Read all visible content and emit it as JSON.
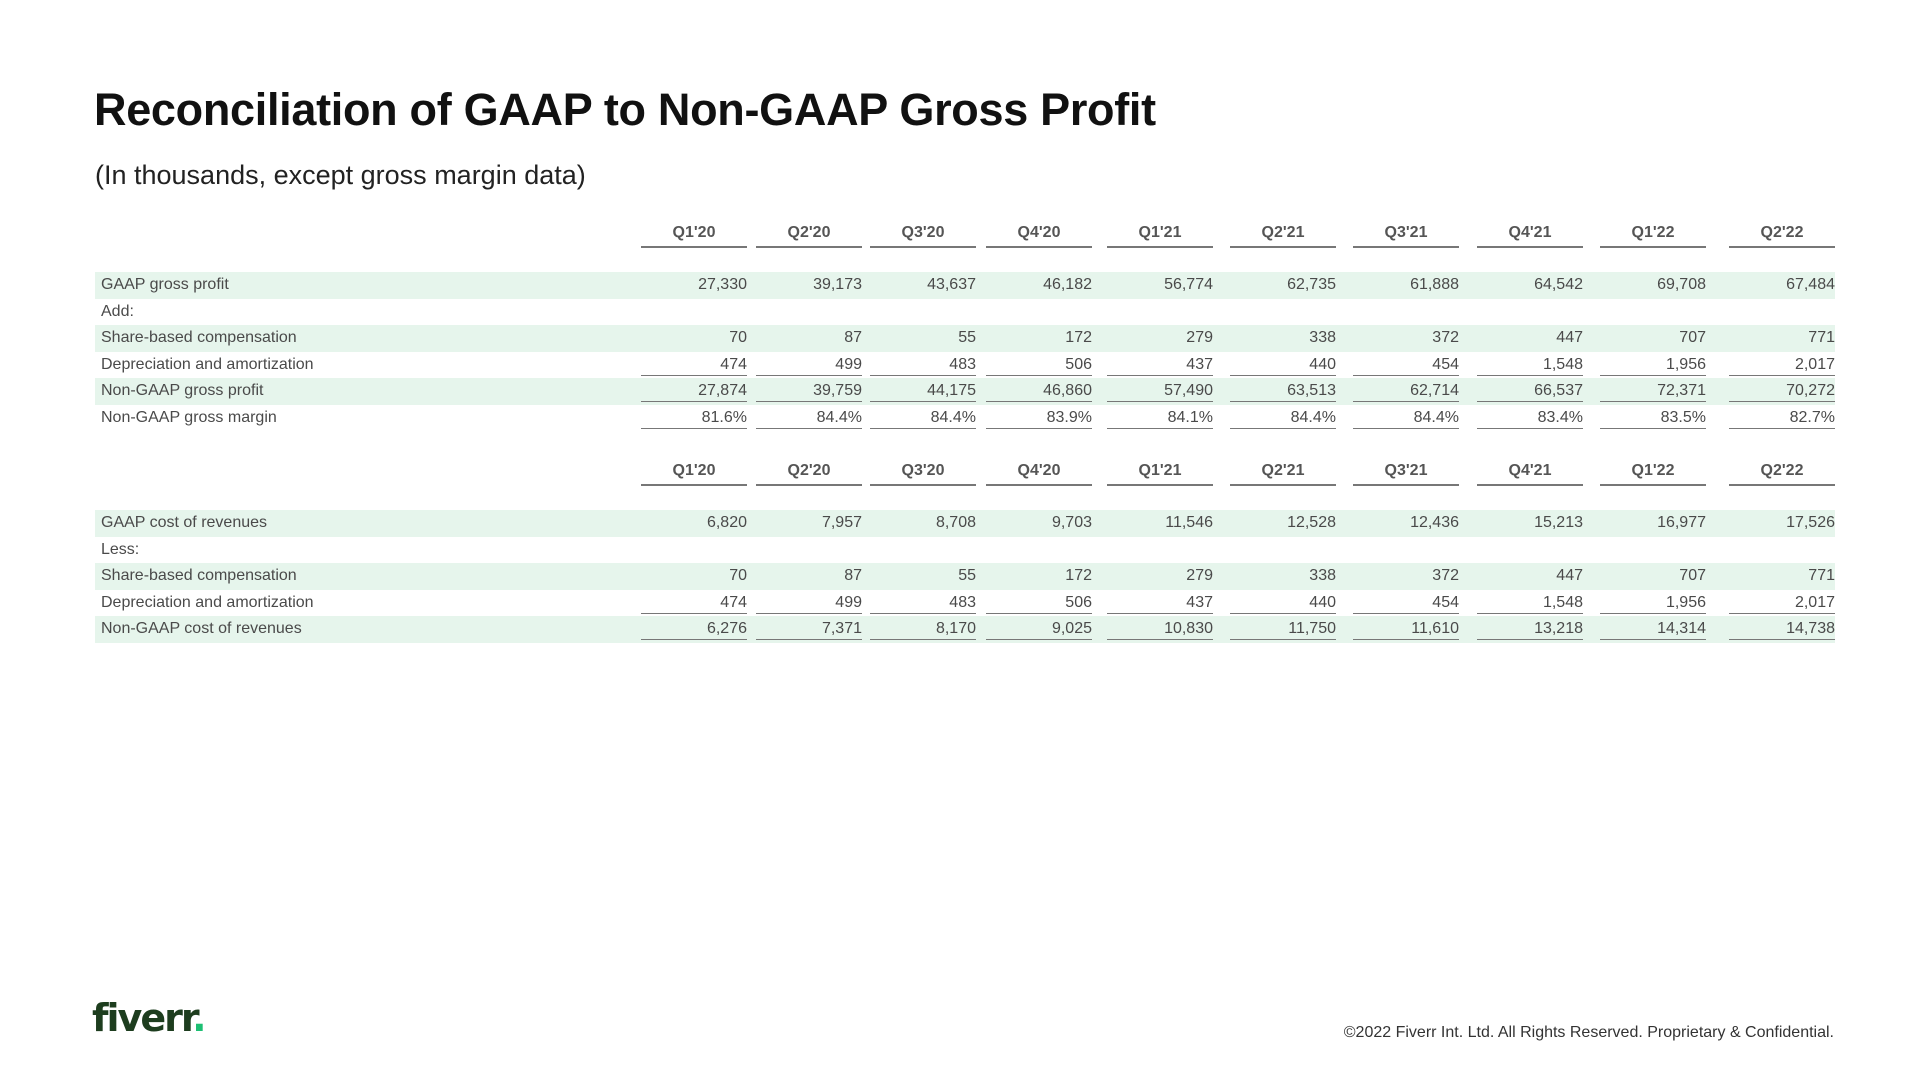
{
  "title": "Reconciliation of GAAP to Non-GAAP Gross Profit",
  "subtitle": "(In thousands, except gross margin data)",
  "table1": {
    "headers": [
      "Q1'20",
      "Q2'20",
      "Q3'20",
      "Q4'20",
      "Q1'21",
      "Q2'21",
      "Q3'21",
      "Q4'21",
      "Q1'22",
      "Q2'22"
    ],
    "rows": [
      {
        "label": "GAAP gross profit",
        "values": [
          "27,330",
          "39,173",
          "43,637",
          "46,182",
          "56,774",
          "62,735",
          "61,888",
          "64,542",
          "69,708",
          "67,484"
        ]
      },
      {
        "label": "Add:",
        "values": []
      },
      {
        "label": "Share-based compensation",
        "values": [
          "70",
          "87",
          "55",
          "172",
          "279",
          "338",
          "372",
          "447",
          "707",
          "771"
        ]
      },
      {
        "label": "Depreciation and amortization",
        "values": [
          "474",
          "499",
          "483",
          "506",
          "437",
          "440",
          "454",
          "1,548",
          "1,956",
          "2,017"
        ]
      },
      {
        "label": "Non-GAAP gross profit",
        "values": [
          "27,874",
          "39,759",
          "44,175",
          "46,860",
          "57,490",
          "63,513",
          "62,714",
          "66,537",
          "72,371",
          "70,272"
        ]
      },
      {
        "label": "Non-GAAP gross margin",
        "values": [
          "81.6%",
          "84.4%",
          "84.4%",
          "83.9%",
          "84.1%",
          "84.4%",
          "84.4%",
          "83.4%",
          "83.5%",
          "82.7%"
        ]
      }
    ]
  },
  "table2": {
    "headers": [
      "Q1'20",
      "Q2'20",
      "Q3'20",
      "Q4'20",
      "Q1'21",
      "Q2'21",
      "Q3'21",
      "Q4'21",
      "Q1'22",
      "Q2'22"
    ],
    "rows": [
      {
        "label": "GAAP cost of revenues",
        "values": [
          "6,820",
          "7,957",
          "8,708",
          "9,703",
          "11,546",
          "12,528",
          "12,436",
          "15,213",
          "16,977",
          "17,526"
        ]
      },
      {
        "label": "Less:",
        "values": []
      },
      {
        "label": "Share-based compensation",
        "values": [
          "70",
          "87",
          "55",
          "172",
          "279",
          "338",
          "372",
          "447",
          "707",
          "771"
        ]
      },
      {
        "label": "Depreciation and amortization",
        "values": [
          "474",
          "499",
          "483",
          "506",
          "437",
          "440",
          "454",
          "1,548",
          "1,956",
          "2,017"
        ]
      },
      {
        "label": "Non-GAAP cost of revenues",
        "values": [
          "6,276",
          "7,371",
          "8,170",
          "9,025",
          "10,830",
          "11,750",
          "11,610",
          "13,218",
          "14,314",
          "14,738"
        ]
      }
    ]
  },
  "logo": {
    "text": "fiverr",
    "dot": "."
  },
  "footer": "©2022 Fiverr Int. Ltd. All Rights Reserved. Proprietary & Confidential."
}
